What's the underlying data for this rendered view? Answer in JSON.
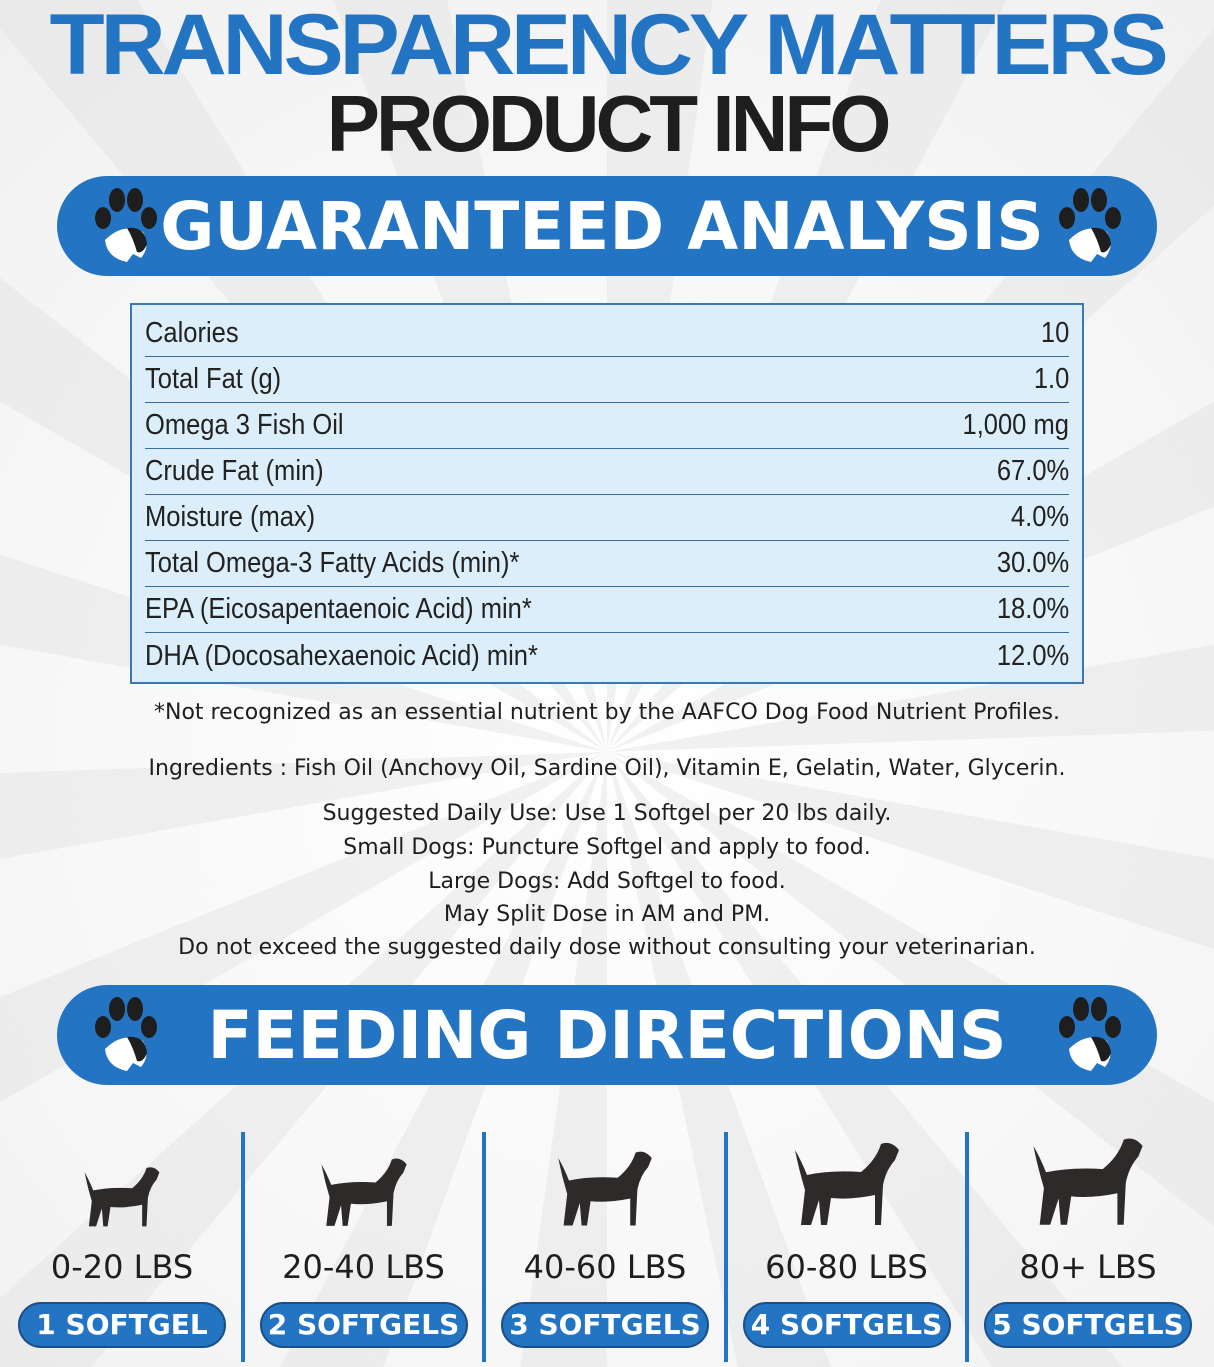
{
  "header": {
    "title": "TRANSPARENCY MATTERS",
    "subtitle": "PRODUCT INFO"
  },
  "analysis": {
    "title": "GUARANTEED ANALYSIS",
    "rows": [
      {
        "label": "Calories",
        "value": "10"
      },
      {
        "label": "Total Fat (g)",
        "value": "1.0"
      },
      {
        "label": "Omega 3 Fish Oil",
        "value": "1,000 mg"
      },
      {
        "label": "Crude Fat (min)",
        "value": "67.0%"
      },
      {
        "label": "Moisture (max)",
        "value": "4.0%"
      },
      {
        "label": "Total Omega-3 Fatty Acids (min)*",
        "value": "30.0%"
      },
      {
        "label": "EPA (Eicosapentaenoic Acid) min*",
        "value": "18.0%"
      },
      {
        "label": "DHA (Docosahexaenoic Acid) min*",
        "value": "12.0%"
      }
    ]
  },
  "footnote": "*Not recognized as an essential nutrient by the AAFCO Dog Food Nutrient Profiles.",
  "ingredients": "Ingredients : Fish Oil (Anchovy Oil, Sardine Oil), Vitamin E, Gelatin, Water, Glycerin.",
  "usage": [
    "Suggested Daily Use:  Use 1 Softgel per 20 lbs daily.",
    "Small Dogs: Puncture Softgel and apply to food.",
    "Large Dogs: Add Softgel to food.",
    "May Split Dose in AM and PM.",
    "Do not exceed the suggested daily dose without consulting your veterinarian."
  ],
  "feeding": {
    "title": "FEEDING DIRECTIONS",
    "items": [
      {
        "weight": "0-20 LBS",
        "dose": "1 SOFTGEL"
      },
      {
        "weight": "20-40 LBS",
        "dose": "2 SOFTGELS"
      },
      {
        "weight": "40-60 LBS",
        "dose": "3 SOFTGELS"
      },
      {
        "weight": "60-80 LBS",
        "dose": "4 SOFTGELS"
      },
      {
        "weight": "80+ LBS",
        "dose": "5 SOFTGELS"
      }
    ]
  },
  "colors": {
    "brand_blue": "#2474c4",
    "text_dark": "#1e1e1e",
    "table_bg": "#dceefa"
  }
}
